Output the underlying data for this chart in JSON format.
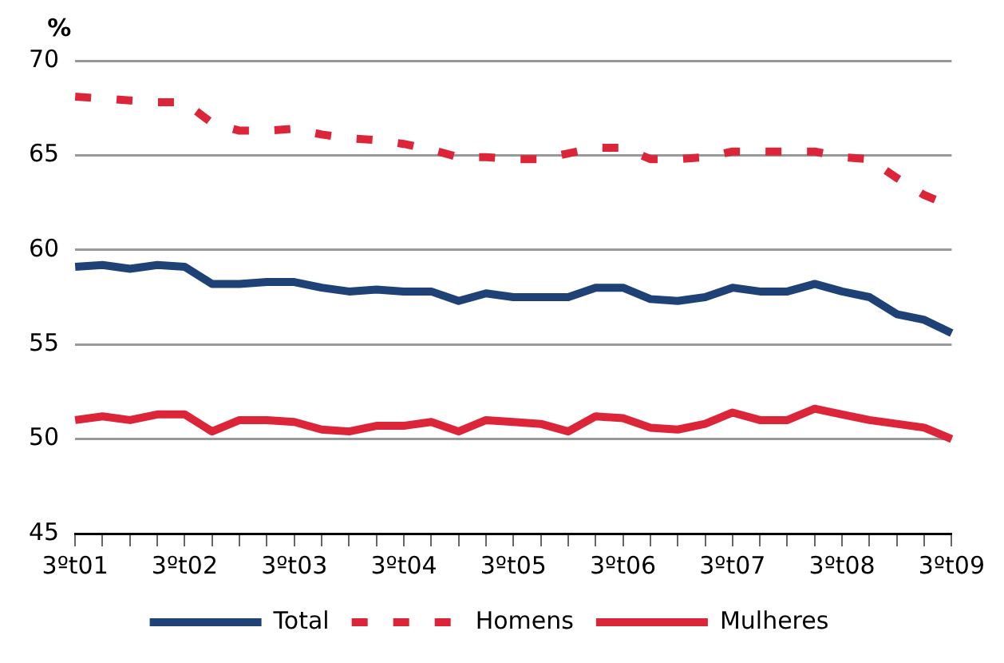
{
  "chart_data": {
    "type": "line",
    "ylabel": "%",
    "categories": [
      "3ºt01",
      null,
      null,
      null,
      "3ºt02",
      null,
      null,
      null,
      "3ºt03",
      null,
      null,
      null,
      "3ºt04",
      null,
      null,
      null,
      "3ºt05",
      null,
      null,
      null,
      "3ºt06",
      null,
      null,
      null,
      "3ºt07",
      null,
      null,
      null,
      "3ºt08",
      null,
      null,
      null,
      "3ºt09"
    ],
    "series": [
      {
        "name": "Total",
        "color": "#1f4276",
        "line_style": "solid",
        "values": [
          59.1,
          59.2,
          59.0,
          59.2,
          59.1,
          58.2,
          58.2,
          58.3,
          58.3,
          58.0,
          57.8,
          57.9,
          57.8,
          57.8,
          57.3,
          57.7,
          57.5,
          57.5,
          57.5,
          58.0,
          58.0,
          57.4,
          57.3,
          57.5,
          58.0,
          57.8,
          57.8,
          58.2,
          57.8,
          57.5,
          56.6,
          56.3,
          55.6
        ]
      },
      {
        "name": "Homens",
        "color": "#dc2538",
        "line_style": "dashed",
        "values": [
          68.1,
          68.0,
          67.9,
          67.8,
          67.8,
          66.7,
          66.3,
          66.3,
          66.4,
          66.1,
          65.9,
          65.8,
          65.6,
          65.3,
          64.9,
          64.9,
          64.8,
          64.8,
          65.1,
          65.4,
          65.4,
          64.8,
          64.8,
          64.9,
          65.2,
          65.2,
          65.2,
          65.2,
          64.9,
          64.8,
          63.8,
          62.9,
          62.3
        ]
      },
      {
        "name": "Mulheres",
        "color": "#dc2538",
        "line_style": "solid",
        "values": [
          51.0,
          51.2,
          51.0,
          51.3,
          51.3,
          50.4,
          51.0,
          51.0,
          50.9,
          50.5,
          50.4,
          50.7,
          50.7,
          50.9,
          50.4,
          51.0,
          50.9,
          50.8,
          50.4,
          51.2,
          51.1,
          50.6,
          50.5,
          50.8,
          51.4,
          51.0,
          51.0,
          51.6,
          51.3,
          51.0,
          50.8,
          50.6,
          50.0
        ]
      }
    ],
    "ylim": [
      45,
      70
    ],
    "yticks": [
      45,
      50,
      55,
      60,
      65,
      70
    ],
    "grid": "y",
    "legend": "bottom",
    "marker": "none"
  }
}
